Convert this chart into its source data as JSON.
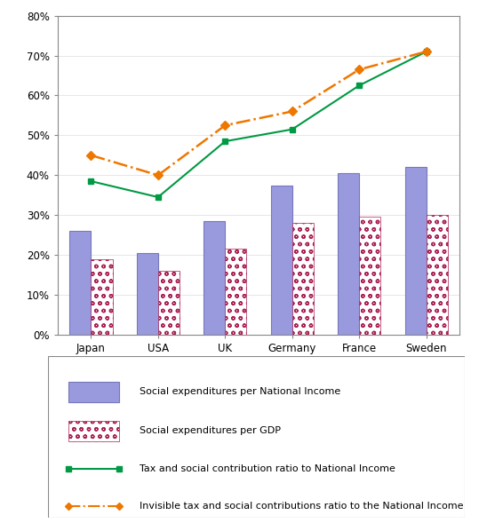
{
  "categories": [
    "Japan",
    "USA",
    "UK",
    "Germany",
    "France",
    "Sweden"
  ],
  "social_exp_national_income": [
    26,
    20.5,
    28.5,
    37.5,
    40.5,
    42
  ],
  "social_exp_gdp": [
    19,
    16,
    21.5,
    28,
    29.5,
    30
  ],
  "tax_social_national_income": [
    38.5,
    34.5,
    48.5,
    51.5,
    62.5,
    71
  ],
  "invisible_tax_national_income": [
    45,
    40,
    52.5,
    56,
    66.5,
    71
  ],
  "bar_color_1": "#9999DD",
  "bar_color_1_edge": "#7777BB",
  "bar_color_2_face": "#FFFFFF",
  "bar_color_2_hatch": "#AA2255",
  "line_color_1": "#009944",
  "line_color_2": "#EE7700",
  "ylim": [
    0,
    80
  ],
  "yticks": [
    0,
    10,
    20,
    30,
    40,
    50,
    60,
    70,
    80
  ],
  "legend_labels": [
    "Social expenditures per National Income",
    "Social expenditures per GDP",
    "Tax and social contribution ratio to National Income",
    "Invisible tax and social contributions ratio to the National Income"
  ],
  "bar_width": 0.32,
  "figsize": [
    5.39,
    5.89
  ],
  "dpi": 100
}
